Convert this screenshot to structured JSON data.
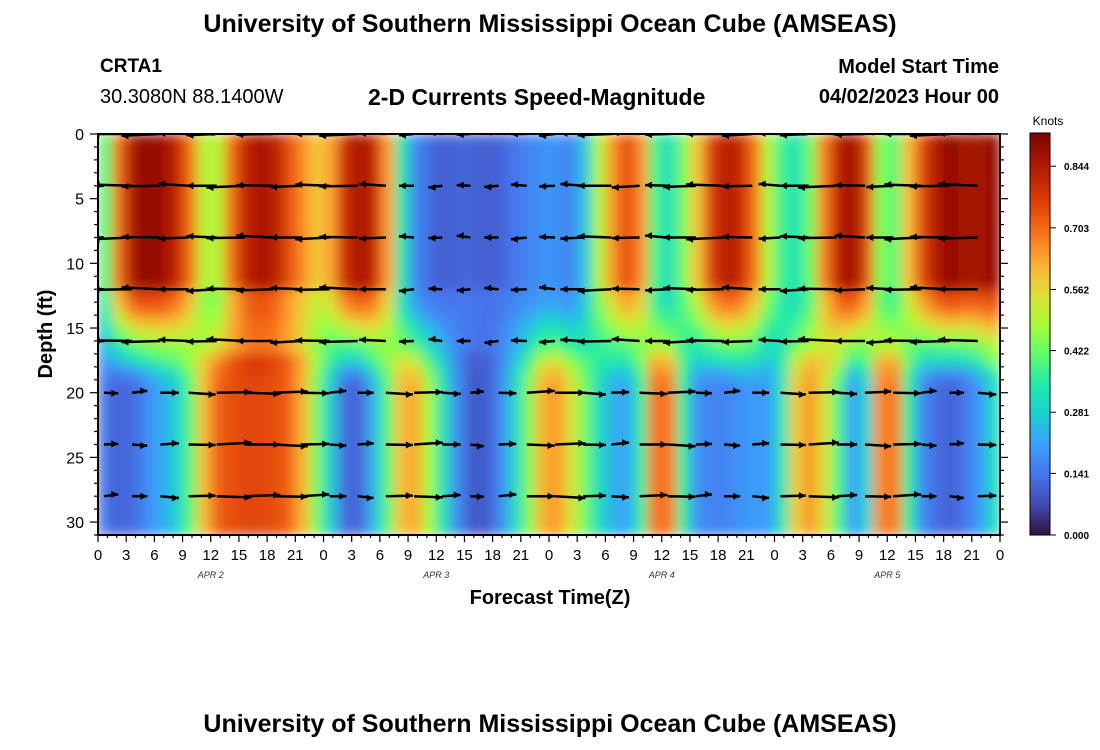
{
  "page": {
    "title_top": "University of Southern Mississippi Ocean Cube (AMSEAS)",
    "title_bottom": "University of Southern Mississippi Ocean Cube (AMSEAS)",
    "station": "CRTA1",
    "coords": "30.3080N  88.1400W",
    "subtitle": "2-D Currents Speed-Magnitude",
    "model_start_label": "Model Start Time",
    "model_start_value": "04/02/2023 Hour 00"
  },
  "chart_data": {
    "type": "heatmap",
    "title": "2-D Currents Speed-Magnitude",
    "xlabel": "Forecast Time(Z)",
    "ylabel": "Depth (ft)",
    "xlim": [
      0,
      96
    ],
    "ylim": [
      31,
      0
    ],
    "y_ticks": [
      0,
      5,
      10,
      15,
      20,
      25,
      30
    ],
    "x_tick_labels": [
      "0",
      "3",
      "6",
      "9",
      "12",
      "15",
      "18",
      "21",
      "0",
      "3",
      "6",
      "9",
      "12",
      "15",
      "18",
      "21",
      "0",
      "3",
      "6",
      "9",
      "12",
      "15",
      "18",
      "21",
      "0",
      "3",
      "6",
      "9",
      "12",
      "15",
      "18",
      "21",
      "0"
    ],
    "day_labels": [
      {
        "label": "APR 2",
        "hour": 12
      },
      {
        "label": "APR 3",
        "hour": 36
      },
      {
        "label": "APR 4",
        "hour": 60
      },
      {
        "label": "APR 5",
        "hour": 84
      }
    ],
    "colorbar": {
      "title": "Knots",
      "ticks": [
        "0.844",
        "0.703",
        "0.562",
        "0.422",
        "0.281",
        "0.141",
        "0.000"
      ],
      "range": [
        0,
        0.92
      ]
    },
    "arrow_depths_ft": [
      0,
      4,
      8,
      12,
      16,
      20,
      24,
      28
    ],
    "speed_profile_knots": {
      "hours": [
        0,
        3,
        6,
        9,
        12,
        15,
        18,
        21,
        24,
        27,
        30,
        33,
        36,
        39,
        42,
        45,
        48,
        51,
        54,
        57,
        60,
        63,
        66,
        69,
        72,
        75,
        78,
        81,
        84,
        87,
        90,
        93,
        96
      ],
      "depth_0_ft": [
        0.25,
        0.85,
        0.9,
        0.8,
        0.4,
        0.8,
        0.88,
        0.7,
        0.55,
        0.88,
        0.8,
        0.2,
        0.1,
        0.12,
        0.1,
        0.15,
        0.2,
        0.15,
        0.6,
        0.8,
        0.25,
        0.5,
        0.85,
        0.8,
        0.4,
        0.3,
        0.8,
        0.9,
        0.3,
        0.7,
        0.9,
        0.85,
        0.9
      ],
      "depth_20_ft": [
        0.15,
        0.1,
        0.2,
        0.3,
        0.7,
        0.75,
        0.75,
        0.7,
        0.35,
        0.05,
        0.3,
        0.7,
        0.4,
        0.1,
        0.1,
        0.35,
        0.7,
        0.5,
        0.25,
        0.2,
        0.85,
        0.2,
        0.15,
        0.2,
        0.2,
        0.7,
        0.5,
        0.1,
        0.85,
        0.2,
        0.1,
        0.15,
        0.35
      ]
    }
  }
}
